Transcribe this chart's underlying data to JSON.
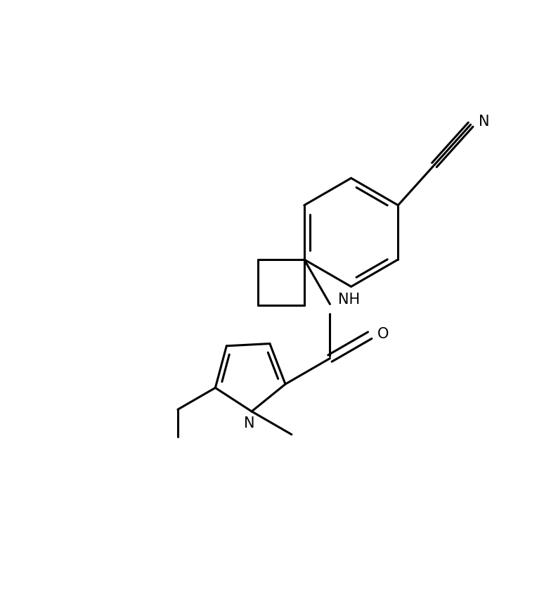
{
  "background_color": "#ffffff",
  "line_color": "#000000",
  "line_width": 2.2,
  "font_size": 15,
  "figsize": [
    7.74,
    8.63
  ],
  "dpi": 100,
  "xlim": [
    0,
    10
  ],
  "ylim": [
    0,
    11.15
  ]
}
